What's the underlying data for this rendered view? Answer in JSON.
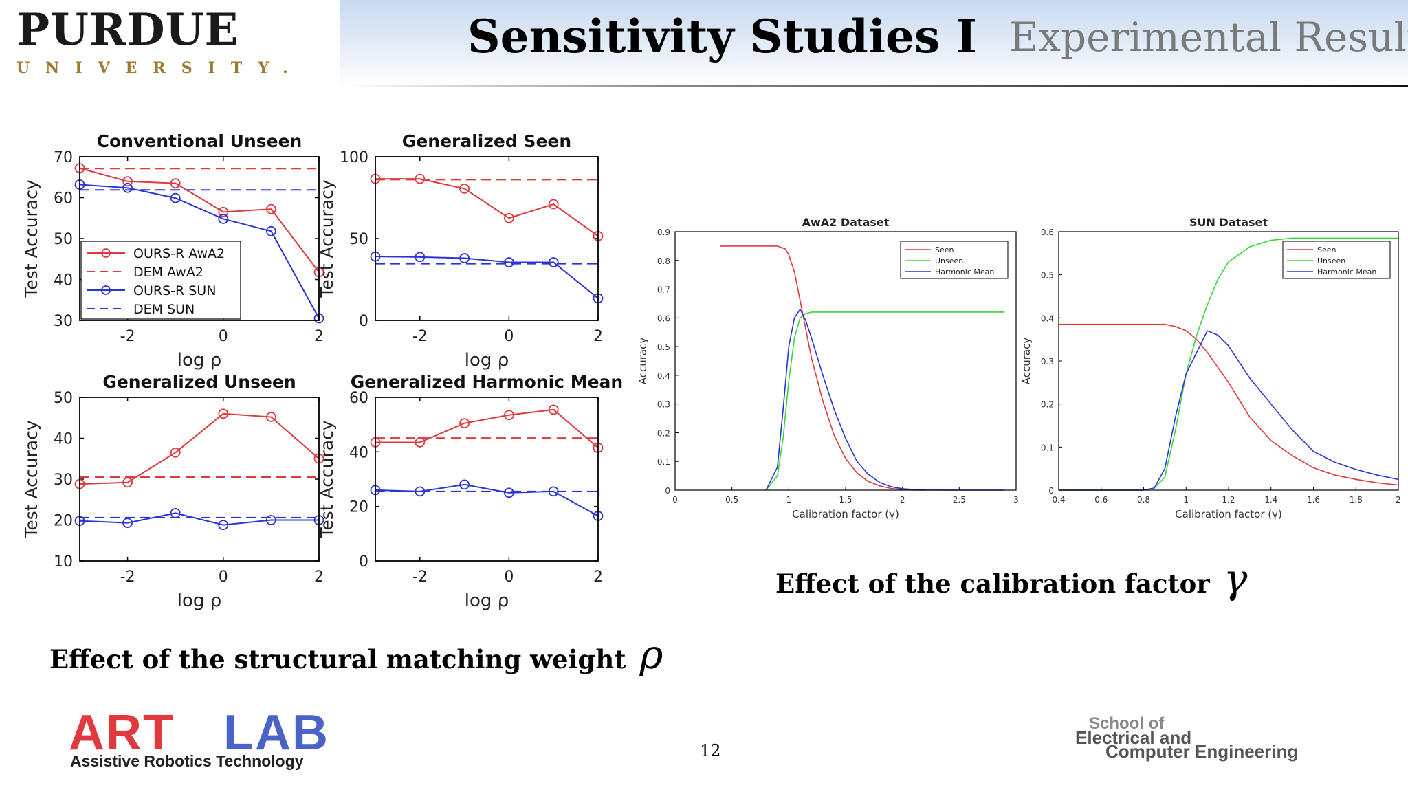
{
  "header": {
    "logo_main": "PURDUE",
    "logo_sub": "UNIVERSITY.",
    "title": "Sensitivity Studies I",
    "section": "Experimental Results"
  },
  "captions": {
    "rho": "Effect of the structural matching weight",
    "rho_symbol": "ρ",
    "gamma": "Effect of the calibration factor",
    "gamma_symbol": "γ"
  },
  "footer": {
    "page_number": "12",
    "artlab_main_red": "ART",
    "artlab_main_blue": "LAB",
    "artlab_sub": "Assistive Robotics Technology",
    "ece_line1": "School of",
    "ece_line2": "Electrical and",
    "ece_line3": "Computer Engineering"
  },
  "colors": {
    "red": "#e0393e",
    "blue": "#2b34d6",
    "green": "#3ad43a",
    "axis": "#000000"
  },
  "chart_data": [
    {
      "id": "conv_unseen",
      "type": "line",
      "title": "Conventional Unseen",
      "xlabel": "log ρ",
      "ylabel": "Test Accuracy",
      "x": [
        -3,
        -2,
        -1,
        0,
        1,
        2
      ],
      "xlim": [
        -3,
        2
      ],
      "xticks": [
        -2,
        0,
        2
      ],
      "ylim": [
        30,
        70
      ],
      "yticks": [
        30,
        40,
        50,
        60,
        70
      ],
      "legend_position": "bottom-left",
      "series": [
        {
          "name": "OURS-R AwA2",
          "style": "solid-marker",
          "color": "red",
          "values": [
            67.2,
            64.0,
            63.5,
            56.5,
            57.2,
            41.8
          ]
        },
        {
          "name": "DEM AwA2",
          "style": "dashed",
          "color": "red",
          "values": [
            67.1,
            67.1,
            67.1,
            67.1,
            67.1,
            67.1
          ]
        },
        {
          "name": "OURS-R SUN",
          "style": "solid-marker",
          "color": "blue",
          "values": [
            63.2,
            62.4,
            59.9,
            54.8,
            51.8,
            30.5
          ]
        },
        {
          "name": "DEM SUN",
          "style": "dashed",
          "color": "blue",
          "values": [
            61.9,
            61.9,
            61.9,
            61.9,
            61.9,
            61.9
          ]
        }
      ]
    },
    {
      "id": "gen_seen",
      "type": "line",
      "title": "Generalized Seen",
      "xlabel": "log ρ",
      "ylabel": "Test Accuracy",
      "x": [
        -3,
        -2,
        -1,
        0,
        1,
        2
      ],
      "xlim": [
        -3,
        2
      ],
      "xticks": [
        -2,
        0,
        2
      ],
      "ylim": [
        0,
        100
      ],
      "yticks": [
        0,
        50,
        100
      ],
      "series": [
        {
          "name": "OURS-R AwA2",
          "style": "solid-marker",
          "color": "red",
          "values": [
            86.5,
            86.5,
            80.5,
            62.5,
            71.0,
            51.5
          ]
        },
        {
          "name": "DEM AwA2",
          "style": "dashed",
          "color": "red",
          "values": [
            86.0,
            86.0,
            86.0,
            86.0,
            86.0,
            86.0
          ]
        },
        {
          "name": "OURS-R SUN",
          "style": "solid-marker",
          "color": "blue",
          "values": [
            39.0,
            38.7,
            38.0,
            35.5,
            35.5,
            13.5
          ]
        },
        {
          "name": "DEM SUN",
          "style": "dashed",
          "color": "blue",
          "values": [
            34.6,
            34.6,
            34.6,
            34.6,
            34.6,
            34.6
          ]
        }
      ]
    },
    {
      "id": "gen_unseen",
      "type": "line",
      "title": "Generalized Unseen",
      "xlabel": "log ρ",
      "ylabel": "Test Accuracy",
      "x": [
        -3,
        -2,
        -1,
        0,
        1,
        2
      ],
      "xlim": [
        -3,
        2
      ],
      "xticks": [
        -2,
        0,
        2
      ],
      "ylim": [
        10,
        50
      ],
      "yticks": [
        10,
        20,
        30,
        40,
        50
      ],
      "series": [
        {
          "name": "OURS-R AwA2",
          "style": "solid-marker",
          "color": "red",
          "values": [
            28.8,
            29.2,
            36.5,
            46.0,
            45.2,
            35.0
          ]
        },
        {
          "name": "DEM AwA2",
          "style": "dashed",
          "color": "red",
          "values": [
            30.5,
            30.5,
            30.5,
            30.5,
            30.5,
            30.5
          ]
        },
        {
          "name": "OURS-R SUN",
          "style": "solid-marker",
          "color": "blue",
          "values": [
            19.8,
            19.3,
            21.7,
            18.8,
            20.0,
            20.0
          ]
        },
        {
          "name": "DEM SUN",
          "style": "dashed",
          "color": "blue",
          "values": [
            20.6,
            20.6,
            20.6,
            20.6,
            20.6,
            20.6
          ]
        }
      ]
    },
    {
      "id": "gen_hm",
      "type": "line",
      "title": "Generalized Harmonic Mean",
      "xlabel": "log ρ",
      "ylabel": "Test Accuracy",
      "x": [
        -3,
        -2,
        -1,
        0,
        1,
        2
      ],
      "xlim": [
        -3,
        2
      ],
      "xticks": [
        -2,
        0,
        2
      ],
      "ylim": [
        0,
        60
      ],
      "yticks": [
        0,
        20,
        40,
        60
      ],
      "series": [
        {
          "name": "OURS-R AwA2",
          "style": "solid-marker",
          "color": "red",
          "values": [
            43.5,
            43.5,
            50.5,
            53.5,
            55.5,
            41.5
          ]
        },
        {
          "name": "DEM AwA2",
          "style": "dashed",
          "color": "red",
          "values": [
            45.1,
            45.1,
            45.1,
            45.1,
            45.1,
            45.1
          ]
        },
        {
          "name": "OURS-R SUN",
          "style": "solid-marker",
          "color": "blue",
          "values": [
            26.0,
            25.5,
            28.0,
            25.0,
            25.5,
            16.5
          ]
        },
        {
          "name": "DEM SUN",
          "style": "dashed",
          "color": "blue",
          "values": [
            25.5,
            25.5,
            25.5,
            25.5,
            25.5,
            25.5
          ]
        }
      ]
    },
    {
      "id": "awa2_cal",
      "type": "line",
      "title": "AwA2 Dataset",
      "xlabel": "Calibration factor (γ)",
      "ylabel": "Accuracy",
      "xlim": [
        0,
        3
      ],
      "xticks": [
        0,
        0.5,
        1,
        1.5,
        2,
        2.5,
        3
      ],
      "xtick_labels": [
        "0",
        "0.5",
        "1",
        "1.5",
        "2",
        "2.5",
        "3"
      ],
      "ylim": [
        0,
        0.9
      ],
      "yticks": [
        0,
        0.1,
        0.2,
        0.3,
        0.4,
        0.5,
        0.6,
        0.7,
        0.8,
        0.9
      ],
      "ytick_labels": [
        "0",
        "0.1",
        "0.2",
        "0.3",
        "0.4",
        "0.5",
        "0.6",
        "0.7",
        "0.8",
        "0.9"
      ],
      "legend_position": "top-right",
      "series": [
        {
          "name": "Seen",
          "color": "red",
          "x": [
            0.4,
            0.6,
            0.75,
            0.9,
            0.97,
            1.0,
            1.05,
            1.1,
            1.15,
            1.2,
            1.3,
            1.4,
            1.5,
            1.6,
            1.7,
            1.8,
            1.9,
            2.0,
            2.1,
            2.2
          ],
          "values": [
            0.85,
            0.85,
            0.85,
            0.85,
            0.84,
            0.82,
            0.76,
            0.66,
            0.56,
            0.46,
            0.31,
            0.19,
            0.11,
            0.06,
            0.03,
            0.015,
            0.006,
            0.002,
            0.0005,
            0
          ]
        },
        {
          "name": "Unseen",
          "color": "green",
          "x": [
            0.8,
            0.9,
            0.95,
            1.0,
            1.05,
            1.1,
            1.15,
            1.2,
            1.3,
            1.5,
            2.0,
            2.5,
            2.9
          ],
          "values": [
            0,
            0.05,
            0.18,
            0.38,
            0.53,
            0.6,
            0.615,
            0.62,
            0.62,
            0.62,
            0.62,
            0.62,
            0.62
          ]
        },
        {
          "name": "Harmonic Mean",
          "color": "blue",
          "x": [
            0.8,
            0.9,
            0.95,
            1.0,
            1.05,
            1.1,
            1.15,
            1.2,
            1.3,
            1.4,
            1.5,
            1.6,
            1.7,
            1.8,
            1.9,
            2.0,
            2.1,
            2.2,
            2.5,
            2.9
          ],
          "values": [
            0,
            0.08,
            0.28,
            0.5,
            0.6,
            0.63,
            0.59,
            0.53,
            0.4,
            0.28,
            0.18,
            0.1,
            0.055,
            0.027,
            0.012,
            0.005,
            0.002,
            0.0005,
            0,
            0
          ]
        }
      ]
    },
    {
      "id": "sun_cal",
      "type": "line",
      "title": "SUN Dataset",
      "xlabel": "Calibration factor (γ)",
      "ylabel": "Accuracy",
      "xlim": [
        0.4,
        2
      ],
      "xticks": [
        0.4,
        0.6,
        0.8,
        1,
        1.2,
        1.4,
        1.6,
        1.8,
        2
      ],
      "xtick_labels": [
        "0.4",
        "0.6",
        "0.8",
        "1",
        "1.2",
        "1.4",
        "1.6",
        "1.8",
        "2"
      ],
      "ylim": [
        0,
        0.6
      ],
      "yticks": [
        0,
        0.1,
        0.2,
        0.3,
        0.4,
        0.5,
        0.6
      ],
      "ytick_labels": [
        "0",
        "0.1",
        "0.2",
        "0.3",
        "0.4",
        "0.5",
        "0.6"
      ],
      "legend_position": "top-right",
      "series": [
        {
          "name": "Seen",
          "color": "red",
          "x": [
            0.4,
            0.6,
            0.8,
            0.9,
            0.95,
            1.0,
            1.05,
            1.1,
            1.2,
            1.3,
            1.4,
            1.5,
            1.6,
            1.7,
            1.8,
            1.9,
            2.0
          ],
          "values": [
            0.385,
            0.385,
            0.385,
            0.385,
            0.38,
            0.37,
            0.35,
            0.32,
            0.25,
            0.17,
            0.115,
            0.08,
            0.052,
            0.035,
            0.025,
            0.017,
            0.012
          ]
        },
        {
          "name": "Unseen",
          "color": "green",
          "x": [
            0.4,
            0.8,
            0.85,
            0.9,
            0.95,
            1.0,
            1.05,
            1.1,
            1.15,
            1.2,
            1.3,
            1.4,
            1.5,
            2.0
          ],
          "values": [
            0,
            0,
            0.005,
            0.03,
            0.14,
            0.27,
            0.36,
            0.43,
            0.49,
            0.53,
            0.565,
            0.58,
            0.585,
            0.585
          ]
        },
        {
          "name": "Harmonic Mean",
          "color": "blue",
          "x": [
            0.4,
            0.8,
            0.85,
            0.9,
            0.95,
            1.0,
            1.05,
            1.1,
            1.15,
            1.2,
            1.3,
            1.4,
            1.5,
            1.6,
            1.7,
            1.8,
            1.9,
            2.0
          ],
          "values": [
            0,
            0,
            0.005,
            0.05,
            0.17,
            0.27,
            0.32,
            0.37,
            0.36,
            0.335,
            0.26,
            0.2,
            0.14,
            0.09,
            0.065,
            0.048,
            0.035,
            0.025
          ]
        }
      ]
    }
  ]
}
